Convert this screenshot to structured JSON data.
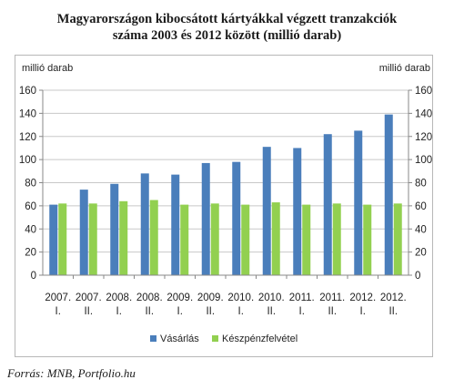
{
  "title_lines": [
    "Magyarországon kibocsátott kártyákkal végzett tranzakciók",
    "száma 2003 és 2012 között (millió darab)"
  ],
  "source": "Forrás: MNB, Portfolio.hu",
  "chart_data": {
    "type": "bar",
    "title": "Magyarországon kibocsátott kártyákkal végzett tranzakciók száma 2003 és 2012 között (millió darab)",
    "ylabel_left": "millió darab",
    "ylabel_right": "millió darab",
    "ylim": [
      0,
      160
    ],
    "yticks": [
      0,
      20,
      40,
      60,
      80,
      100,
      120,
      140,
      160
    ],
    "grid": true,
    "legend_position": "bottom",
    "categories": [
      [
        "2007.",
        "I."
      ],
      [
        "2007.",
        "II."
      ],
      [
        "2008.",
        "I."
      ],
      [
        "2008.",
        "II."
      ],
      [
        "2009.",
        "I."
      ],
      [
        "2009.",
        "II."
      ],
      [
        "2010.",
        "I."
      ],
      [
        "2010.",
        "II."
      ],
      [
        "2011.",
        "I."
      ],
      [
        "2011.",
        "II."
      ],
      [
        "2012.",
        "I."
      ],
      [
        "2012.",
        "II."
      ]
    ],
    "series": [
      {
        "name": "Vásárlás",
        "color": "#4a7ebb",
        "values": [
          61,
          74,
          79,
          88,
          87,
          97,
          98,
          111,
          110,
          122,
          125,
          139
        ]
      },
      {
        "name": "Készpénzfelvétel",
        "color": "#92d050",
        "values": [
          62,
          62,
          64,
          65,
          61,
          62,
          61,
          63,
          61,
          62,
          61,
          62
        ]
      }
    ]
  }
}
